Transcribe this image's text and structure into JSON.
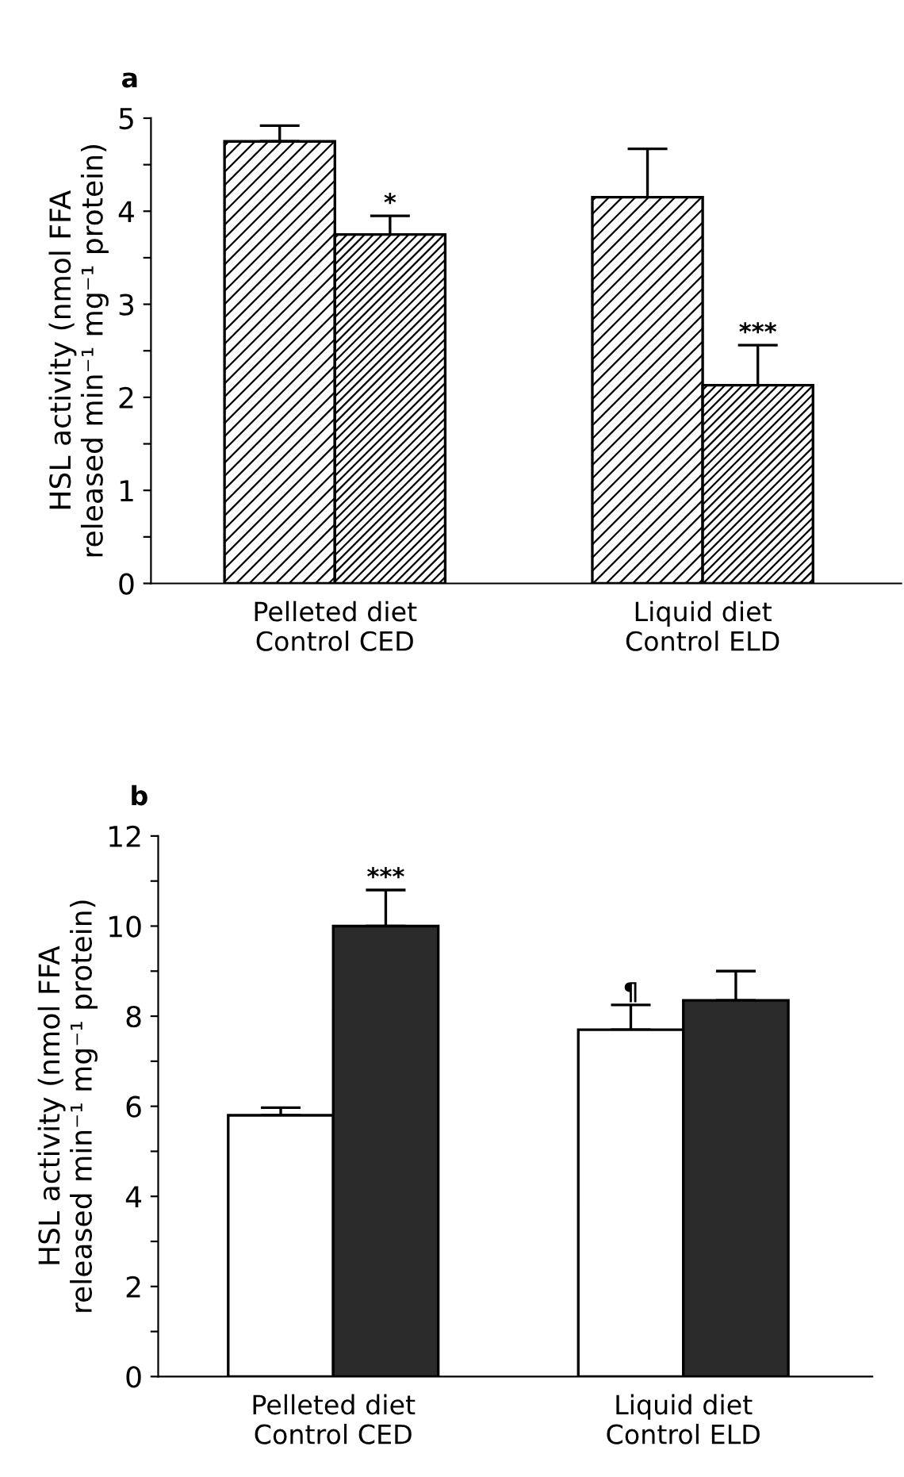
{
  "chart_data": [
    {
      "type": "bar",
      "title": "a",
      "ylabel": "HSL activity (nmol FFA\nreleased min⁻¹ mg⁻¹ protein)",
      "categories": [
        "Pelleted diet\nControl CED",
        "Liquid diet\nControl ELD"
      ],
      "ylim": [
        0,
        5
      ],
      "yticks": [
        0,
        {
          "value": 0.5,
          "label": null
        },
        1,
        {
          "value": 1.5,
          "label": null
        },
        2,
        {
          "value": 2.5,
          "label": null
        },
        3,
        {
          "value": 3.5,
          "label": null
        },
        4,
        {
          "value": 4.5,
          "label": null
        },
        5
      ],
      "grid": false,
      "legend": false,
      "series": [
        {
          "color": "#000000",
          "values": [
            4.75,
            4.15
          ],
          "errors": [
            [
              4.75,
              4.92
            ],
            [
              4.15,
              4.67
            ]
          ],
          "value_labels": [
            null,
            null
          ]
        },
        {
          "color": "#000000",
          "values": [
            3.75,
            2.13
          ],
          "errors": [
            [
              3.75,
              3.95
            ],
            [
              2.13,
              2.56
            ]
          ],
          "value_labels": [
            "*",
            "***"
          ]
        }
      ]
    },
    {
      "type": "bar",
      "title": "b",
      "ylabel": "HSL activity (nmol FFA\nreleased min⁻¹ mg⁻¹ protein)",
      "categories": [
        "Pelleted diet\nControl CED",
        "Liquid diet\nControl ELD"
      ],
      "ylim": [
        0,
        12
      ],
      "yticks": [
        0,
        {
          "value": 1,
          "label": null
        },
        2,
        {
          "value": 3,
          "label": null
        },
        4,
        {
          "value": 5,
          "label": null
        },
        6,
        {
          "value": 7,
          "label": null
        },
        8,
        {
          "value": 9,
          "label": null
        },
        10,
        {
          "value": 11,
          "label": null
        },
        12
      ],
      "grid": false,
      "legend": false,
      "series": [
        {
          "color": "#ffffff",
          "values": [
            5.8,
            7.7
          ],
          "errors": [
            [
              5.8,
              5.97
            ],
            [
              7.7,
              8.25
            ]
          ],
          "value_labels": [
            null,
            "¶"
          ]
        },
        {
          "color": "#2b2b2b",
          "values": [
            10.0,
            8.35
          ],
          "errors": [
            [
              10.0,
              10.8
            ],
            [
              8.35,
              9.0
            ]
          ],
          "value_labels": [
            "***",
            null
          ]
        }
      ]
    }
  ]
}
